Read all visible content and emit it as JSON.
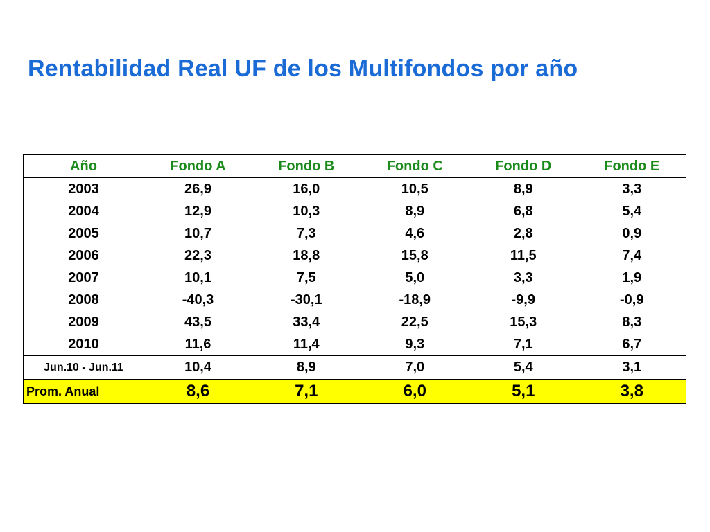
{
  "title": "Rentabilidad Real UF de los Multifondos por año",
  "table": {
    "headers": [
      "Año",
      "Fondo A",
      "Fondo B",
      "Fondo C",
      "Fondo D",
      "Fondo E"
    ],
    "years": [
      {
        "year": "2003",
        "values": [
          "26,9",
          "16,0",
          "10,5",
          "8,9",
          "3,3"
        ]
      },
      {
        "year": "2004",
        "values": [
          "12,9",
          "10,3",
          "8,9",
          "6,8",
          "5,4"
        ]
      },
      {
        "year": "2005",
        "values": [
          "10,7",
          "7,3",
          "4,6",
          "2,8",
          "0,9"
        ]
      },
      {
        "year": "2006",
        "values": [
          "22,3",
          "18,8",
          "15,8",
          "11,5",
          "7,4"
        ]
      },
      {
        "year": "2007",
        "values": [
          "10,1",
          "7,5",
          "5,0",
          "3,3",
          "1,9"
        ]
      },
      {
        "year": "2008",
        "values": [
          "-40,3",
          "-30,1",
          "-18,9",
          "-9,9",
          "-0,9"
        ]
      },
      {
        "year": "2009",
        "values": [
          "43,5",
          "33,4",
          "22,5",
          "15,3",
          "8,3"
        ]
      },
      {
        "year": "2010",
        "values": [
          "11,6",
          "11,4",
          "9,3",
          "7,1",
          "6,7"
        ]
      }
    ],
    "period_row": {
      "label": "Jun.10 - Jun.11",
      "values": [
        "10,4",
        "8,9",
        "7,0",
        "5,4",
        "3,1"
      ]
    },
    "average_row": {
      "label": "Prom. Anual",
      "values": [
        "8,6",
        "7,1",
        "6,0",
        "5,1",
        "3,8"
      ]
    }
  },
  "colors": {
    "title": "#1a6bd6",
    "header_text": "#1a8a1a",
    "average_highlight": "#ffff00"
  }
}
